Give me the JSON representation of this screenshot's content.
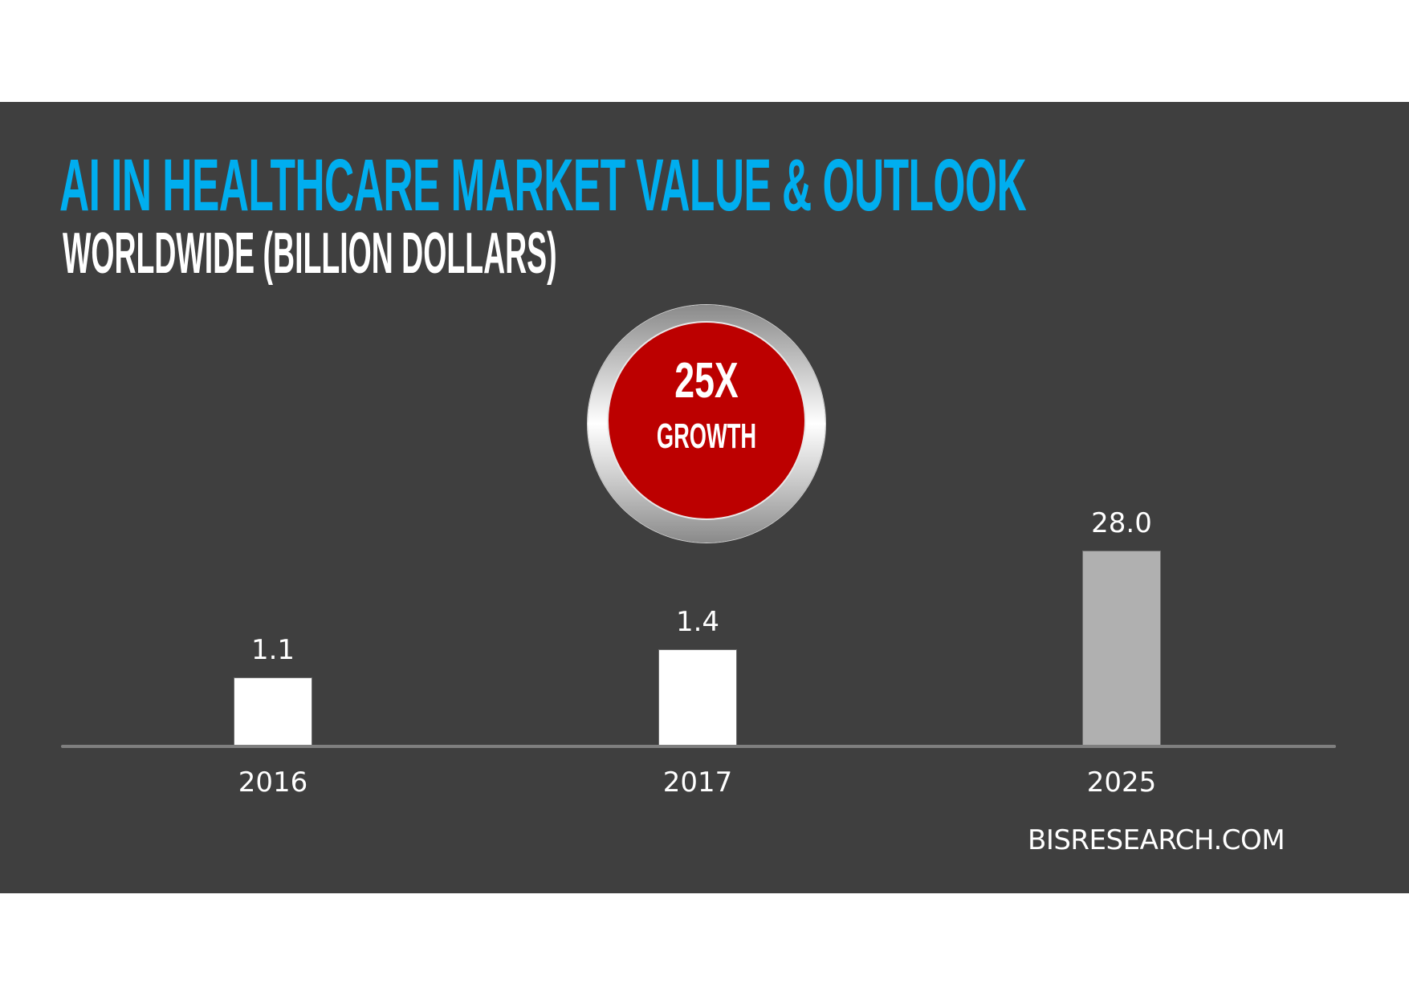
{
  "header": {
    "title": "AI IN HEALTHCARE MARKET VALUE & OUTLOOK",
    "subtitle": "WORLDWIDE (BILLION DOLLARS)"
  },
  "badge": {
    "value": "25X",
    "label": "GROWTH"
  },
  "footer": {
    "source": "BISRESEARCH.COM"
  },
  "colors": {
    "background": "#3f3f3f",
    "title": "#00aeef",
    "badge_red": "#bc0000",
    "bar_actual": "#ffffff",
    "bar_forecast": "#b0b0b0",
    "axis": "#7f7f7f"
  },
  "chart_data": {
    "type": "bar",
    "title": "AI in Healthcare Market Value & Outlook",
    "subtitle": "Worldwide (Billion Dollars)",
    "categories": [
      "2016",
      "2017",
      "2025"
    ],
    "values": [
      1.1,
      1.4,
      28.0
    ],
    "value_labels": [
      "1.1",
      "1.4",
      "28.0"
    ],
    "bar_colors": [
      "#ffffff",
      "#ffffff",
      "#b0b0b0"
    ],
    "xlabel": "",
    "ylabel": "Billion Dollars",
    "y_axis_shown": false,
    "grid": false,
    "legend": null,
    "annotations": [
      "25X GROWTH"
    ],
    "source": "BISRESEARCH.COM",
    "note": "Bar heights are stylized (not to scale) in the original graphic"
  }
}
